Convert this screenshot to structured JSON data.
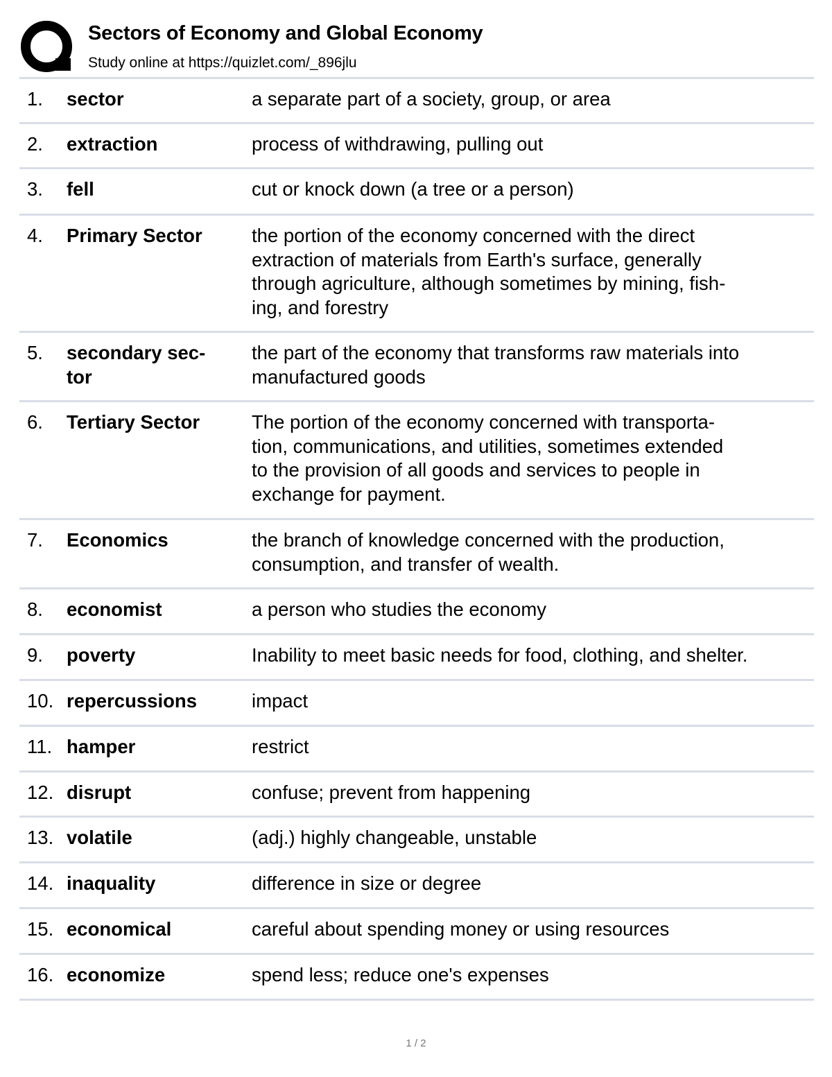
{
  "header": {
    "logo_letter": "Q",
    "title": "Sectors of Economy and Global Economy",
    "subtitle": "Study online at https://quizlet.com/_896jlu"
  },
  "terms": [
    {
      "num": "1.",
      "term": "sector",
      "definition": "a separate part of a society, group, or area"
    },
    {
      "num": "2.",
      "term": "extraction",
      "definition": "process of withdrawing, pulling out"
    },
    {
      "num": "3.",
      "term": "fell",
      "definition": "cut or knock down (a tree or a person)"
    },
    {
      "num": "4.",
      "term": "Primary Sector",
      "definition": "the portion of the economy concerned with the direct\nextraction of materials from Earth's surface, generally\nthrough agriculture, although sometimes by mining, fish-\ning, and forestry"
    },
    {
      "num": "5.",
      "term": "secondary sec-\ntor",
      "definition": "the part of the economy that transforms raw materials into\nmanufactured goods"
    },
    {
      "num": "6.",
      "term": "Tertiary Sector",
      "definition": "The portion of the economy concerned with transporta-\ntion, communications, and utilities, sometimes extended\nto the provision of all goods and services to people in\nexchange for payment."
    },
    {
      "num": "7.",
      "term": "Economics",
      "definition": "the branch of knowledge concerned with the production,\nconsumption, and transfer of wealth."
    },
    {
      "num": "8.",
      "term": "economist",
      "definition": "a person who studies the economy"
    },
    {
      "num": "9.",
      "term": "poverty",
      "definition": "Inability to meet basic needs for food, clothing, and shelter."
    },
    {
      "num": "10.",
      "term": "repercussions",
      "definition": "impact"
    },
    {
      "num": "11.",
      "term": "hamper",
      "definition": "restrict"
    },
    {
      "num": "12.",
      "term": "disrupt",
      "definition": "confuse; prevent from happening"
    },
    {
      "num": "13.",
      "term": "volatile",
      "definition": "(adj.) highly changeable, unstable"
    },
    {
      "num": "14.",
      "term": "inaquality",
      "definition": "difference in size or degree"
    },
    {
      "num": "15.",
      "term": "economical",
      "definition": "careful about spending money or using resources"
    },
    {
      "num": "16.",
      "term": "economize",
      "definition": "spend less; reduce one's expenses"
    }
  ],
  "footer": {
    "page": "1 / 2"
  }
}
